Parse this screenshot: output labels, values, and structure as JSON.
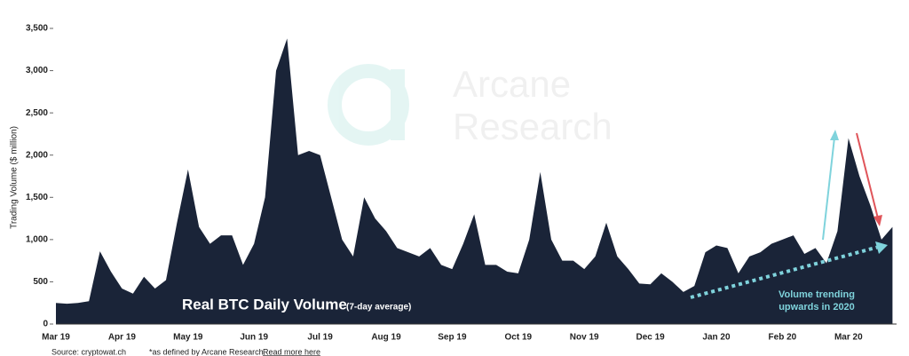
{
  "chart_data": {
    "type": "area",
    "title": "Real BTC Daily Volume",
    "subtitle": "(7-day average)",
    "y_label": "Trading Volume ($ million)",
    "source": "Source: cryptowat.ch",
    "footnote": "*as defined by Arcane Research.",
    "footnote_link": "Read more here",
    "watermark": [
      "Arcane",
      "Research"
    ],
    "annotation": [
      "Volume trending",
      "upwards in 2020"
    ],
    "color": "#1a2438",
    "categories": [
      "Mar 19",
      null,
      null,
      null,
      null,
      null,
      "Apr 19",
      null,
      null,
      null,
      null,
      null,
      "May 19",
      null,
      null,
      null,
      null,
      null,
      "Jun 19",
      null,
      null,
      null,
      null,
      null,
      "Jul 19",
      null,
      null,
      null,
      null,
      null,
      "Aug 19",
      null,
      null,
      null,
      null,
      null,
      "Sep 19",
      null,
      null,
      null,
      null,
      null,
      "Oct 19",
      null,
      null,
      null,
      null,
      null,
      "Nov 19",
      null,
      null,
      null,
      null,
      null,
      "Dec 19",
      null,
      null,
      null,
      null,
      null,
      "Jan 20",
      null,
      null,
      null,
      null,
      null,
      "Feb 20",
      null,
      null,
      null,
      null,
      null,
      "Mar 20",
      null,
      null,
      null,
      null
    ],
    "values": [
      250,
      240,
      250,
      270,
      860,
      620,
      420,
      360,
      560,
      420,
      520,
      1200,
      1830,
      1150,
      950,
      1050,
      1050,
      700,
      950,
      1500,
      3000,
      3380,
      2000,
      2050,
      2000,
      1500,
      1000,
      800,
      1500,
      1250,
      1100,
      900,
      850,
      800,
      900,
      700,
      650,
      950,
      1300,
      700,
      700,
      620,
      600,
      1000,
      1800,
      1000,
      750,
      750,
      650,
      800,
      1200,
      800,
      650,
      480,
      470,
      600,
      500,
      380,
      450,
      850,
      930,
      900,
      600,
      800,
      850,
      950,
      1000,
      1050,
      830,
      900,
      720,
      1100,
      2200,
      1750,
      1400,
      1000,
      1150
    ],
    "ylim": [
      0,
      3500
    ],
    "yticks": [
      0,
      500,
      {
        "value": 1000,
        "label": "1,000"
      },
      {
        "value": 1500,
        "label": "1,500"
      },
      {
        "value": 2000,
        "label": "2,000"
      },
      {
        "value": 2500,
        "label": "2,500"
      },
      {
        "value": 3000,
        "label": "3,000"
      },
      {
        "value": 3500,
        "label": "3,500"
      }
    ],
    "grid": false
  }
}
